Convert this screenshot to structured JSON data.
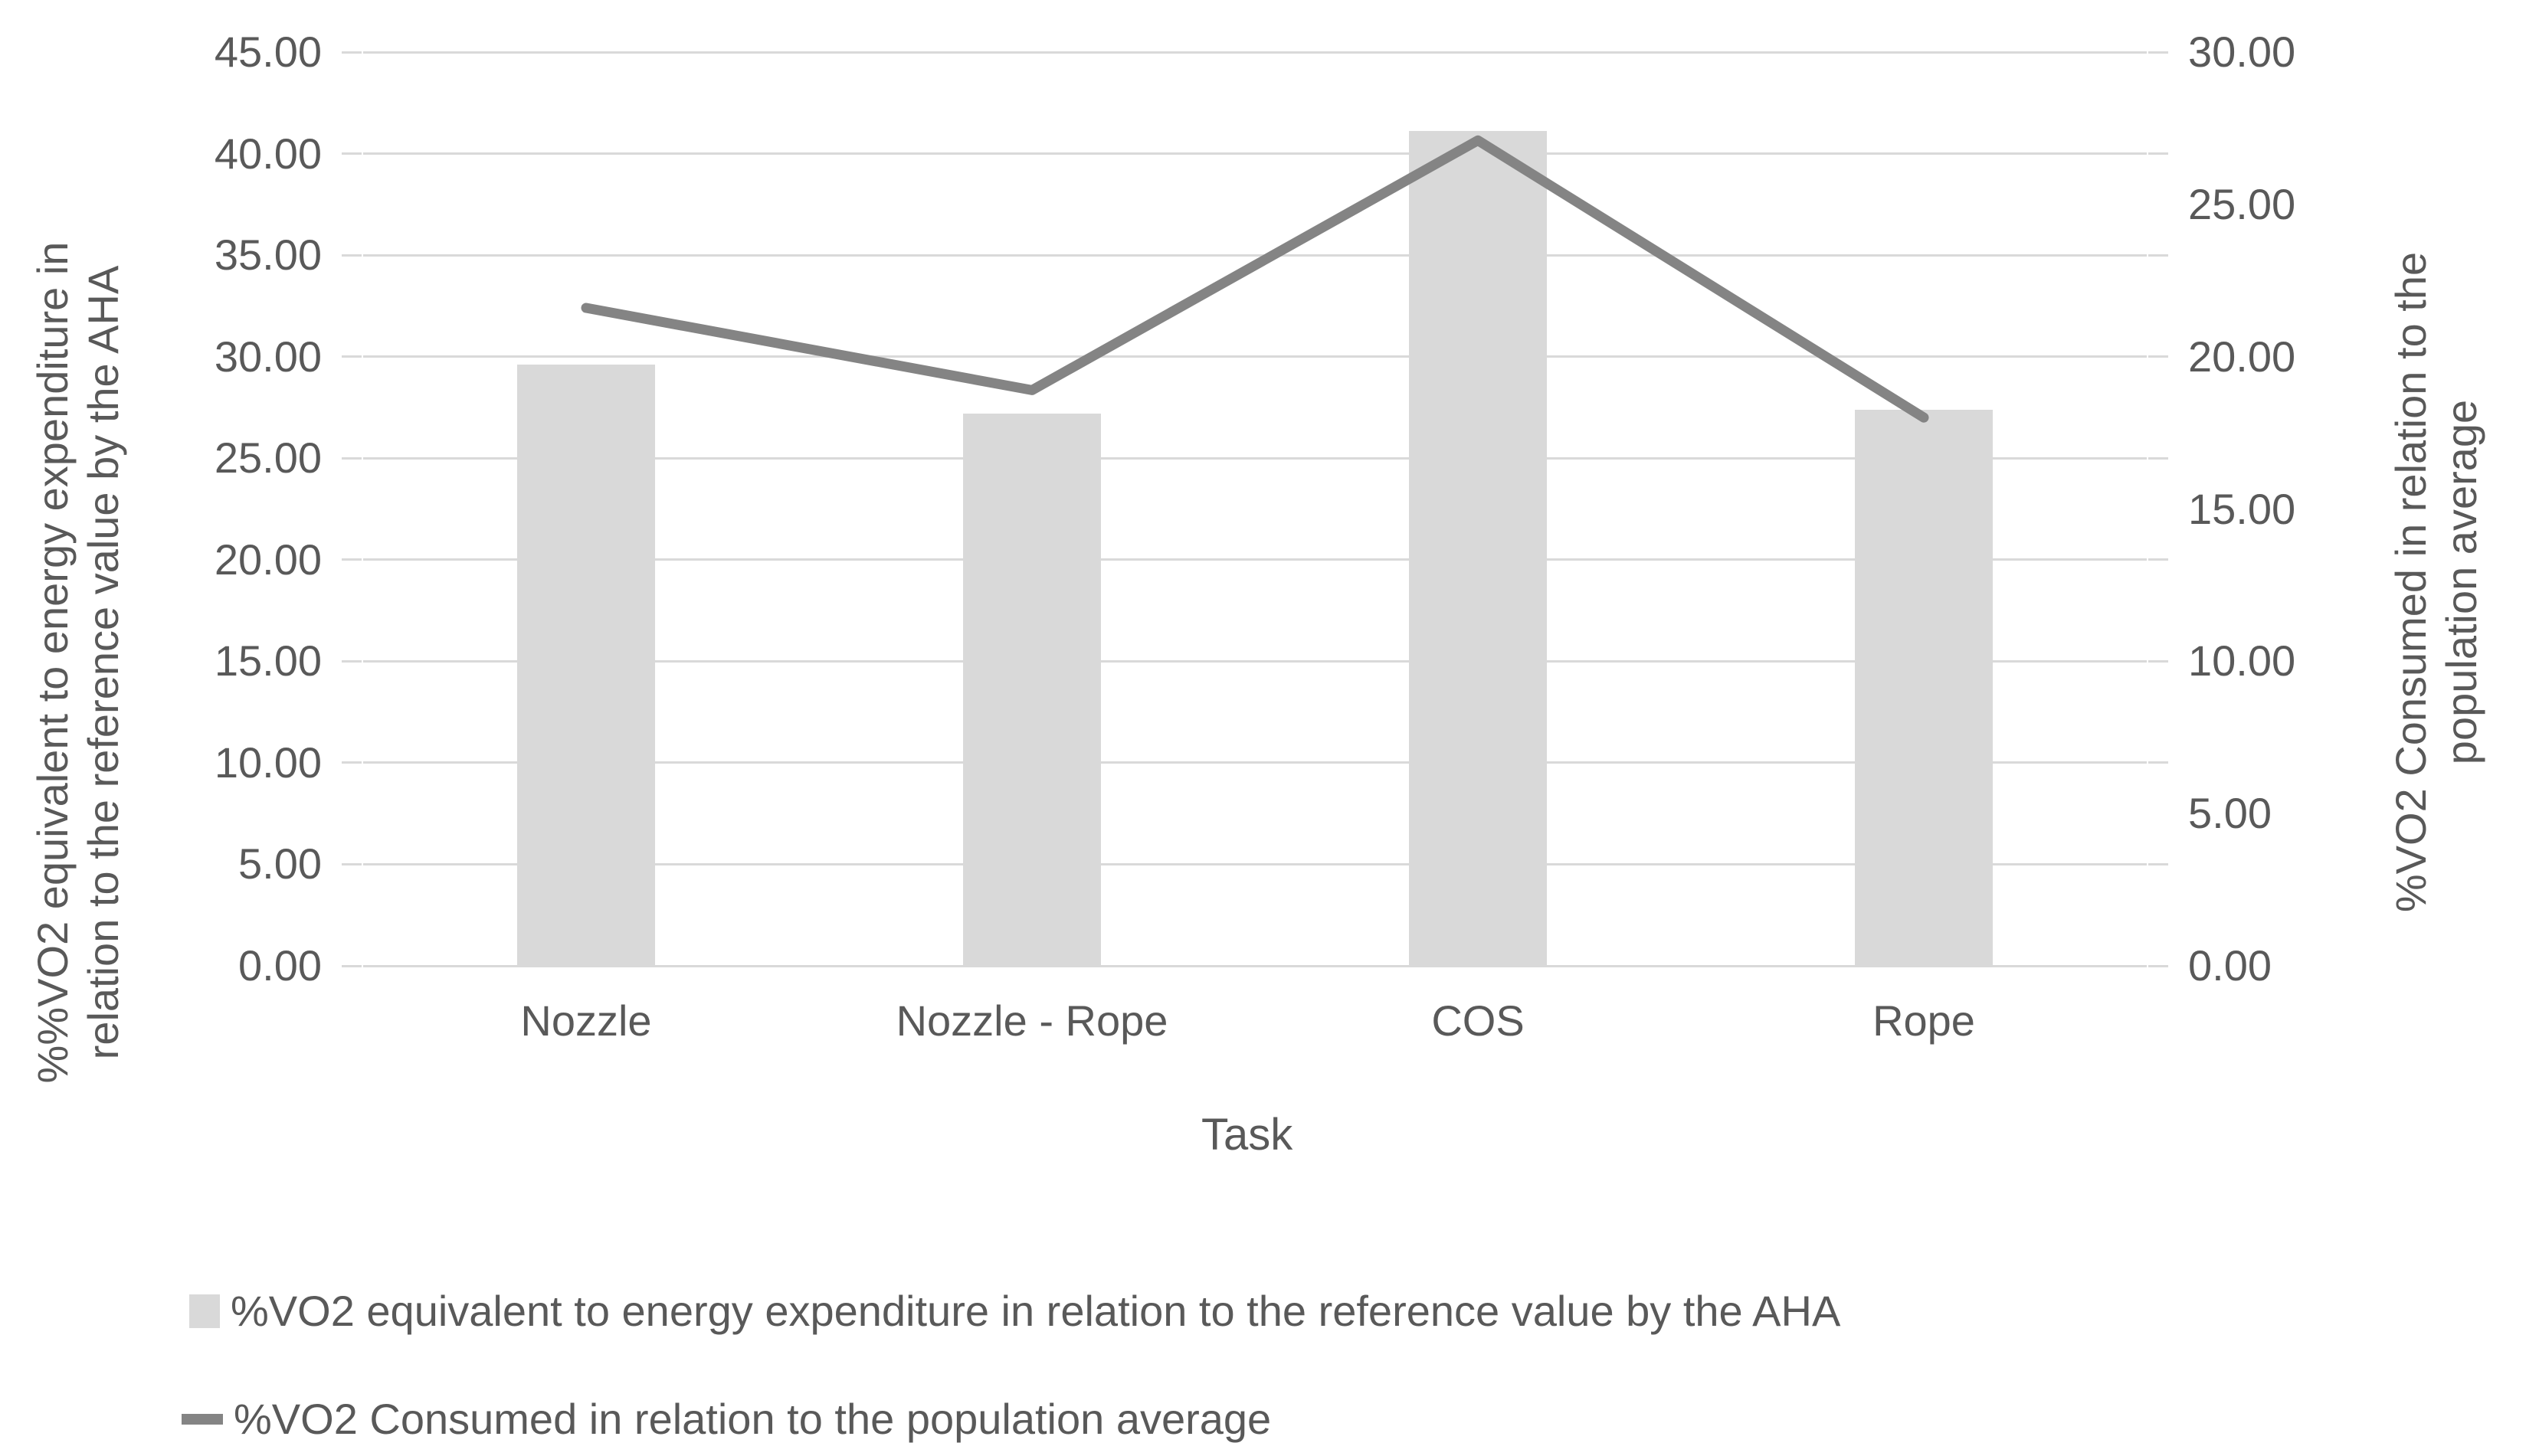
{
  "chart_data": {
    "type": "combo",
    "categories": [
      "Nozzle",
      "Nozzle - Rope",
      "COS",
      "Rope"
    ],
    "series": [
      {
        "name": "%VO2 equivalent to energy expenditure in relation to the reference value by the AHA",
        "type": "bar",
        "axis": "left",
        "color": "#d9d9d9",
        "values": [
          29.6,
          27.2,
          41.1,
          27.4
        ]
      },
      {
        "name": "%VO2 Consumed in relation to the population average",
        "type": "line",
        "axis": "right",
        "color": "#848484",
        "values": [
          21.6,
          18.9,
          27.1,
          18.0
        ]
      }
    ],
    "left_axis": {
      "title": "%%VO2 equivalent to energy expenditure in relation to the reference value by the AHA",
      "title_lines": [
        "%%VO2 equivalent to energy expenditure in",
        "relation to the reference value by the AHA"
      ],
      "min": 0,
      "max": 45,
      "step": 5,
      "tick_labels": [
        "45.00",
        "40.00",
        "35.00",
        "30.00",
        "25.00",
        "20.00",
        "15.00",
        "10.00",
        "5.00",
        "0.00"
      ]
    },
    "right_axis": {
      "title": "%VO2 Consumed in relation to the population average",
      "title_lines": [
        "%VO2 Consumed in relation to the",
        "population average"
      ],
      "min": 0,
      "max": 30,
      "step": 5,
      "tick_labels": [
        "30.00",
        "25.00",
        "20.00",
        "15.00",
        "10.00",
        "5.00",
        "0.00"
      ]
    },
    "x_axis": {
      "title": "Task"
    },
    "grid": true,
    "gridline_color": "#d9d9d9",
    "text_color": "#595959",
    "legend_position": "bottom-left"
  }
}
